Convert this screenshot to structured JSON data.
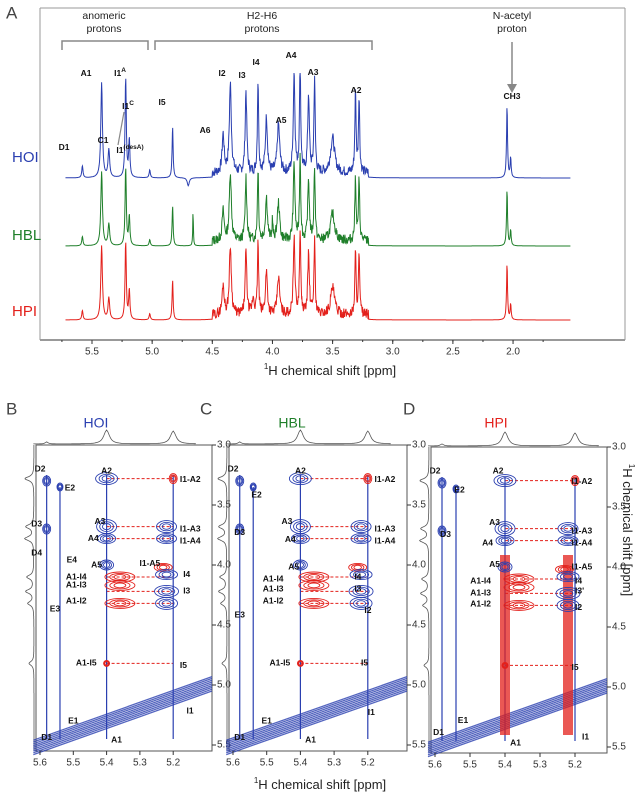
{
  "panel_a": {
    "letter": "A",
    "groups": [
      {
        "lines": [
          "anomeric",
          "protons"
        ]
      },
      {
        "lines": [
          "H2-H6",
          "protons"
        ]
      },
      {
        "lines": [
          "N-acetyl",
          "proton"
        ]
      }
    ],
    "samples": [
      "HOI",
      "HBL",
      "HPI"
    ],
    "peak_labels": [
      {
        "text": "D1"
      },
      {
        "text": "A1"
      },
      {
        "text": "C1"
      },
      {
        "text": "I1",
        "sup": "A"
      },
      {
        "text": "I1",
        "sup": "C"
      },
      {
        "text": "I1",
        "sup": "(desA)"
      },
      {
        "text": "I5"
      },
      {
        "text": "A6"
      },
      {
        "text": "I2"
      },
      {
        "text": "I3"
      },
      {
        "text": "I4"
      },
      {
        "text": "A4"
      },
      {
        "text": "A5"
      },
      {
        "text": "A3"
      },
      {
        "text": "A2"
      },
      {
        "text": "CH3"
      }
    ],
    "x_ticks": [
      "5.5",
      "5.0",
      "4.5",
      "4.0",
      "3.5",
      "3.0",
      "2.5",
      "2.0"
    ],
    "x_axis_label": {
      "sup": "1",
      "text": "H chemical shift [ppm]"
    }
  },
  "panels": [
    {
      "letter": "B",
      "sample": "HOI",
      "x_ticks": [
        "5.6",
        "5.5",
        "5.4",
        "5.3",
        "5.2"
      ],
      "y_ticks": [
        "3.0",
        "3.5",
        "4.0",
        "4.5",
        "5.0",
        "5.5"
      ],
      "peak_labels": [
        "D2",
        "E2",
        "D3",
        "D4",
        "E4",
        "E3",
        "A2",
        "I1-A2",
        "A3",
        "I1-A3",
        "A4",
        "I1-A4",
        "A5",
        "I1-A5",
        "I4",
        "A1-I4",
        "A1-I3",
        "I3",
        "A1-I2",
        "A1-I5",
        "I5",
        "D1",
        "E1",
        "A1",
        "I1"
      ]
    },
    {
      "letter": "C",
      "sample": "HBL",
      "x_ticks": [
        "5.6",
        "5.5",
        "5.4",
        "5.3",
        "5.2"
      ],
      "y_ticks": [
        "3.0",
        "3.5",
        "4.0",
        "4.5",
        "5.0",
        "5.5"
      ],
      "peak_labels": [
        "D2",
        "E2",
        "D3",
        "E3",
        "A2",
        "I1-A2",
        "A3",
        "I1-A3",
        "A4",
        "I1-A4",
        "A5",
        "A1-I4",
        "A1-I3",
        "I4",
        "I3",
        "A1-I2",
        "I2",
        "A1-I5",
        "I5",
        "D1",
        "E1",
        "A1",
        "I1"
      ]
    },
    {
      "letter": "D",
      "sample": "HPI",
      "x_ticks": [
        "5.6",
        "5.5",
        "5.4",
        "5.3",
        "5.2"
      ],
      "y_ticks": [
        "3.0",
        "3.5",
        "4.0",
        "4.5",
        "5.0",
        "5.5"
      ],
      "peak_labels": [
        "D2",
        "E2",
        "D3",
        "A2",
        "I1-A2",
        "A3",
        "I1-A3",
        "A4",
        "I1-A4",
        "A5",
        "I1-A5",
        "A1-I4",
        "I4",
        "A1-I3",
        "I3'",
        "A1-I2",
        "I2",
        "I5",
        "D1",
        "E1",
        "A1",
        "I1"
      ]
    }
  ],
  "x_axis_label": {
    "sup": "1",
    "text": "H chemical shift [ppm]"
  },
  "y_axis_label": {
    "sup": "1",
    "text": "H chemical shift [ppm]"
  }
}
